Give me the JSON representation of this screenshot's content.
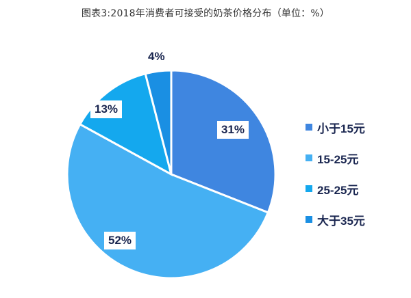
{
  "chart_data": {
    "type": "pie",
    "title": "图表3:2018年消费者可接受的奶茶价格分布（单位：%）",
    "categories": [
      "小于15元",
      "15-25元",
      "25-25元",
      "大于35元"
    ],
    "values": [
      31,
      52,
      13,
      4
    ],
    "value_labels": [
      "31%",
      "52%",
      "13%",
      "4%"
    ],
    "colors": [
      "#3f86e0",
      "#45b0f3",
      "#14a8ee",
      "#1a8fe3"
    ],
    "start_angle_deg": 0,
    "direction": "clockwise",
    "legend_position": "right"
  },
  "legend": {
    "items": [
      {
        "label": "小于15元",
        "color": "#3f86e0"
      },
      {
        "label": "15-25元",
        "color": "#45b0f3"
      },
      {
        "label": "25-25元",
        "color": "#14a8ee"
      },
      {
        "label": "大于35元",
        "color": "#1a8fe3"
      }
    ]
  }
}
